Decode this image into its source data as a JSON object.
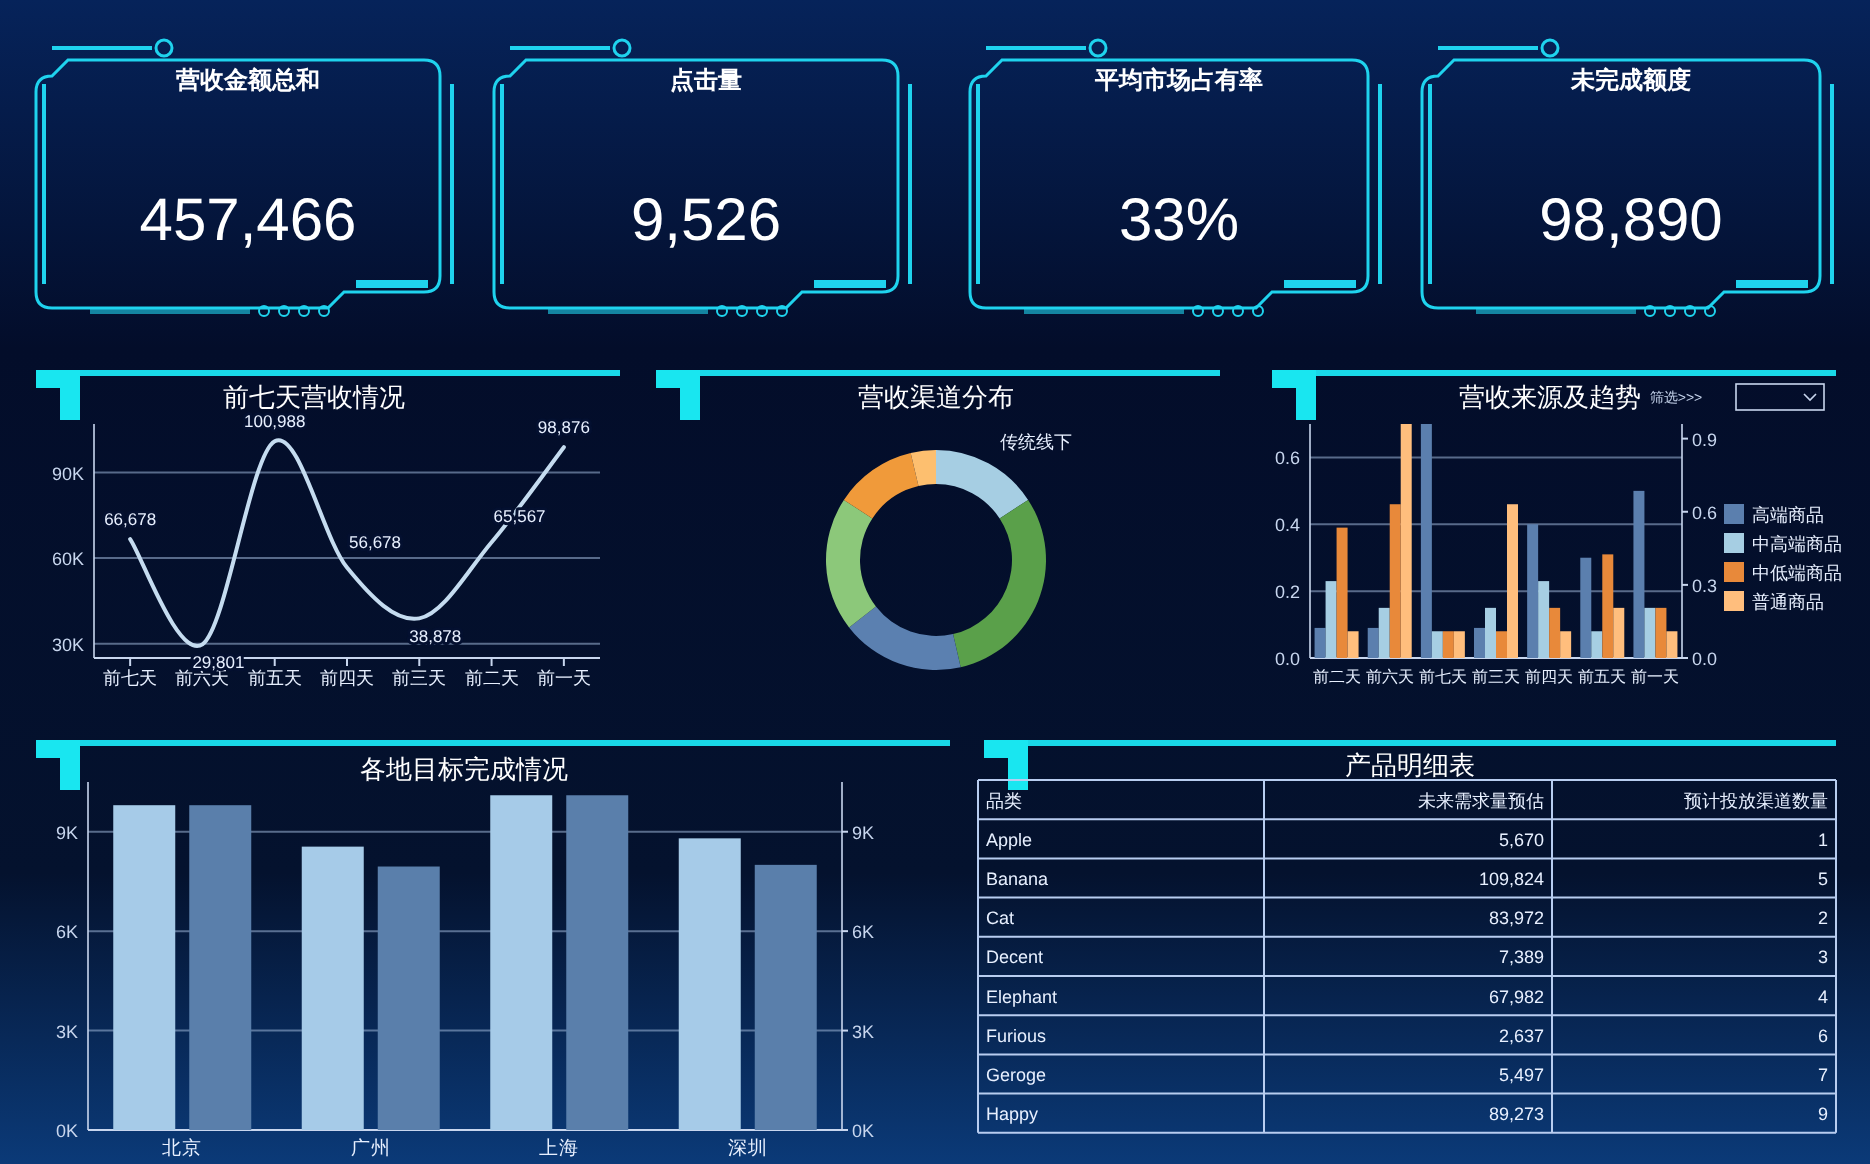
{
  "chart_data": [
    {
      "type": "other",
      "title": "营收金额总和",
      "annotations": [
        "457,466"
      ]
    },
    {
      "type": "other",
      "title": "点击量",
      "annotations": [
        "9,526"
      ]
    },
    {
      "type": "other",
      "title": "平均市场占有率",
      "annotations": [
        "33%"
      ]
    },
    {
      "type": "other",
      "title": "未完成额度",
      "annotations": [
        "98,890"
      ]
    },
    {
      "type": "line",
      "title": "前七天营收情况",
      "categories": [
        "前七天",
        "前六天",
        "前五天",
        "前四天",
        "前三天",
        "前二天",
        "前一天"
      ],
      "values": [
        66678,
        29801,
        100988,
        56678,
        38878,
        65567,
        98876
      ],
      "color": "#c5dcf0",
      "ylim": [
        25000,
        107000
      ],
      "yticks": [
        {
          "value": 30000,
          "label": "30K"
        },
        {
          "value": 60000,
          "label": "60K"
        },
        {
          "value": 90000,
          "label": "90K"
        }
      ],
      "grid": "y",
      "value_labels": [
        "66,678",
        "29,801",
        "100,988",
        "56,678",
        "38,878",
        "65,567",
        "98,876"
      ]
    },
    {
      "type": "donut",
      "title": "营收渠道分布",
      "categories": [
        "传统线下",
        null,
        null,
        null,
        null,
        null
      ],
      "values": [
        15.8,
        30.6,
        18.1,
        19.7,
        12.1,
        3.7
      ],
      "colors": [
        "#a6cee3",
        "#5aa04a",
        "#5b80b0",
        "#8cc87a",
        "#f09a3a",
        "#fdbf6f"
      ]
    },
    {
      "type": "bar",
      "title": "营收来源及趋势",
      "categories": [
        "前二天",
        "前六天",
        "前七天",
        "前三天",
        "前四天",
        "前五天",
        "前一天"
      ],
      "series": [
        {
          "name": "高端商品",
          "color": "#5b7fae",
          "values": [
            0.09,
            0.09,
            0.7,
            0.09,
            0.4,
            0.3,
            0.5
          ]
        },
        {
          "name": "中高端商品",
          "color": "#a6cee3",
          "values": [
            0.23,
            0.15,
            0.08,
            0.15,
            0.23,
            0.08,
            0.15
          ]
        },
        {
          "name": "中低端商品",
          "color": "#e8893a",
          "values": [
            0.39,
            0.46,
            0.08,
            0.08,
            0.15,
            0.31,
            0.15
          ]
        },
        {
          "name": "普通商品",
          "color": "#ffbe7d",
          "values": [
            0.08,
            0.7,
            0.08,
            0.46,
            0.08,
            0.15,
            0.08
          ]
        }
      ],
      "ylim": [
        0,
        0.7
      ],
      "yticks": [
        {
          "value": 0,
          "label": "0.0"
        },
        0.2,
        0.4,
        0.6
      ],
      "y2lim": [
        0,
        0.96
      ],
      "y2ticks": [
        {
          "value": 0,
          "label": "0.0"
        },
        0.3,
        0.6,
        0.9
      ],
      "grid": "y",
      "legend": "right",
      "annotations": [
        "筛选>>>"
      ]
    },
    {
      "type": "bar",
      "title": "各地目标完成情况",
      "categories": [
        "北京",
        "广州",
        "上海",
        "深圳"
      ],
      "series": [
        {
          "color": "#a6cbe8",
          "values": [
            9800,
            8550,
            10100,
            8800
          ]
        },
        {
          "color": "#5a7fab",
          "values": [
            9800,
            7950,
            10100,
            8000
          ]
        }
      ],
      "ylim": [
        0,
        10500
      ],
      "yticks": [
        {
          "value": 0,
          "label": "0K"
        },
        {
          "value": 3000,
          "label": "3K"
        },
        {
          "value": 6000,
          "label": "6K"
        },
        {
          "value": 9000,
          "label": "9K"
        }
      ],
      "y2lim": [
        0,
        10500
      ],
      "y2ticks": [
        {
          "value": 0,
          "label": "0K"
        },
        {
          "value": 3000,
          "label": "3K"
        },
        {
          "value": 6000,
          "label": "6K"
        },
        {
          "value": 9000,
          "label": "9K"
        }
      ],
      "grid": "y"
    },
    {
      "type": "other",
      "title": "产品明细表",
      "annotations": [
        "品类",
        "未来需求量预估",
        "预计投放渠道数量",
        "Apple",
        "5,670",
        "1",
        "Banana",
        "109,824",
        "5",
        "Cat",
        "83,972",
        "2",
        "Decent",
        "7,389",
        "3",
        "Elephant",
        "67,982",
        "4",
        "Furious",
        "2,637",
        "6",
        "Geroge",
        "5,497",
        "7",
        "Happy",
        "89,273",
        "9"
      ]
    }
  ]
}
